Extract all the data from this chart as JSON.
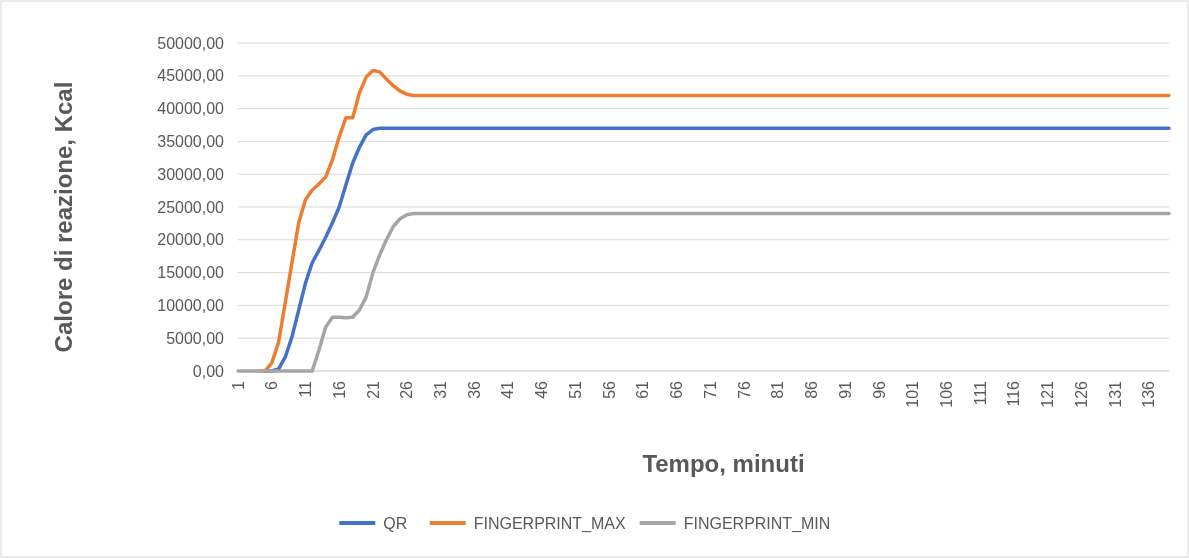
{
  "chart_data": {
    "type": "line",
    "xlabel": "Tempo, minuti",
    "ylabel": "Calore di reazione, Kcal",
    "categories": [
      "1",
      null,
      null,
      null,
      null,
      "6",
      null,
      null,
      null,
      null,
      "11",
      null,
      null,
      null,
      null,
      "16",
      null,
      null,
      null,
      null,
      "21",
      null,
      null,
      null,
      null,
      "26",
      null,
      null,
      null,
      null,
      "31",
      null,
      null,
      null,
      null,
      "36",
      null,
      null,
      null,
      null,
      "41",
      null,
      null,
      null,
      null,
      "46",
      null,
      null,
      null,
      null,
      "51",
      null,
      null,
      null,
      null,
      "56",
      null,
      null,
      null,
      null,
      "61",
      null,
      null,
      null,
      null,
      "66",
      null,
      null,
      null,
      null,
      "71",
      null,
      null,
      null,
      null,
      "76",
      null,
      null,
      null,
      null,
      "81",
      null,
      null,
      null,
      null,
      "86",
      null,
      null,
      null,
      null,
      "91",
      null,
      null,
      null,
      null,
      "96",
      null,
      null,
      null,
      null,
      "101",
      null,
      null,
      null,
      null,
      "106",
      null,
      null,
      null,
      null,
      "111",
      null,
      null,
      null,
      null,
      "116",
      null,
      null,
      null,
      null,
      "121",
      null,
      null,
      null,
      null,
      "126",
      null,
      null,
      null,
      null,
      "131",
      null,
      null,
      null,
      null,
      "136",
      null,
      null,
      null
    ],
    "series": [
      {
        "name": "QR",
        "color": "#4472c4",
        "values": [
          null,
          null,
          null,
          null,
          0,
          0,
          300,
          2100,
          5200,
          9300,
          13400,
          16500,
          18400,
          20400,
          22600,
          25000,
          28400,
          31700,
          34100,
          36000,
          36800,
          37000,
          37000,
          37000,
          37000,
          37000,
          37000,
          37000,
          37000,
          37000,
          37000,
          37000,
          37000,
          37000,
          37000,
          37000,
          37000,
          37000,
          37000,
          37000,
          37000,
          37000,
          37000,
          37000,
          37000,
          37000,
          37000,
          37000,
          37000,
          37000,
          37000,
          37000,
          37000,
          37000,
          37000,
          37000,
          37000,
          37000,
          37000,
          37000,
          37000,
          37000,
          37000,
          37000,
          37000,
          37000,
          37000,
          37000,
          37000,
          37000,
          37000,
          37000,
          37000,
          37000,
          37000,
          37000,
          37000,
          37000,
          37000,
          37000,
          37000,
          37000,
          37000,
          37000,
          37000,
          37000,
          37000,
          37000,
          37000,
          37000,
          37000,
          37000,
          37000,
          37000,
          37000,
          37000,
          37000,
          37000,
          37000,
          37000,
          37000,
          37000,
          37000,
          37000,
          37000,
          37000,
          37000,
          37000,
          37000,
          37000,
          37000,
          37000,
          37000,
          37000,
          37000,
          37000,
          37000,
          37000,
          37000,
          37000,
          37000,
          37000,
          37000,
          37000,
          37000,
          37000,
          37000,
          37000,
          37000,
          37000,
          37000,
          37000,
          37000,
          37000,
          37000,
          37000,
          37000,
          37000,
          37000
        ]
      },
      {
        "name": "FINGERPRINT_MAX",
        "color": "#ed7d31",
        "values": [
          null,
          null,
          null,
          0,
          0,
          1200,
          4300,
          10400,
          16500,
          22600,
          26100,
          27600,
          28500,
          29600,
          32200,
          35700,
          38600,
          38600,
          42400,
          44800,
          45800,
          45600,
          44500,
          43500,
          42700,
          42200,
          42000,
          42000,
          42000,
          42000,
          42000,
          42000,
          42000,
          42000,
          42000,
          42000,
          42000,
          42000,
          42000,
          42000,
          42000,
          42000,
          42000,
          42000,
          42000,
          42000,
          42000,
          42000,
          42000,
          42000,
          42000,
          42000,
          42000,
          42000,
          42000,
          42000,
          42000,
          42000,
          42000,
          42000,
          42000,
          42000,
          42000,
          42000,
          42000,
          42000,
          42000,
          42000,
          42000,
          42000,
          42000,
          42000,
          42000,
          42000,
          42000,
          42000,
          42000,
          42000,
          42000,
          42000,
          42000,
          42000,
          42000,
          42000,
          42000,
          42000,
          42000,
          42000,
          42000,
          42000,
          42000,
          42000,
          42000,
          42000,
          42000,
          42000,
          42000,
          42000,
          42000,
          42000,
          42000,
          42000,
          42000,
          42000,
          42000,
          42000,
          42000,
          42000,
          42000,
          42000,
          42000,
          42000,
          42000,
          42000,
          42000,
          42000,
          42000,
          42000,
          42000,
          42000,
          42000,
          42000,
          42000,
          42000,
          42000,
          42000,
          42000,
          42000,
          42000,
          42000,
          42000,
          42000,
          42000,
          42000,
          42000,
          42000,
          42000,
          42000,
          42000
        ]
      },
      {
        "name": "FINGERPRINT_MIN",
        "color": "#a5a5a5",
        "values": [
          0,
          0,
          0,
          0,
          0,
          0,
          0,
          0,
          0,
          0,
          0,
          0,
          3200,
          6700,
          8200,
          8200,
          8100,
          8200,
          9300,
          11300,
          15000,
          17700,
          20000,
          22000,
          23200,
          23800,
          24000,
          24000,
          24000,
          24000,
          24000,
          24000,
          24000,
          24000,
          24000,
          24000,
          24000,
          24000,
          24000,
          24000,
          24000,
          24000,
          24000,
          24000,
          24000,
          24000,
          24000,
          24000,
          24000,
          24000,
          24000,
          24000,
          24000,
          24000,
          24000,
          24000,
          24000,
          24000,
          24000,
          24000,
          24000,
          24000,
          24000,
          24000,
          24000,
          24000,
          24000,
          24000,
          24000,
          24000,
          24000,
          24000,
          24000,
          24000,
          24000,
          24000,
          24000,
          24000,
          24000,
          24000,
          24000,
          24000,
          24000,
          24000,
          24000,
          24000,
          24000,
          24000,
          24000,
          24000,
          24000,
          24000,
          24000,
          24000,
          24000,
          24000,
          24000,
          24000,
          24000,
          24000,
          24000,
          24000,
          24000,
          24000,
          24000,
          24000,
          24000,
          24000,
          24000,
          24000,
          24000,
          24000,
          24000,
          24000,
          24000,
          24000,
          24000,
          24000,
          24000,
          24000,
          24000,
          24000,
          24000,
          24000,
          24000,
          24000,
          24000,
          24000,
          24000,
          24000,
          24000,
          24000,
          24000,
          24000,
          24000,
          24000,
          24000,
          24000,
          24000
        ]
      }
    ],
    "ylim": [
      0,
      50000
    ],
    "yticks": [
      {
        "value": 0,
        "label": "0,00"
      },
      {
        "value": 5000,
        "label": "5000,00"
      },
      {
        "value": 10000,
        "label": "10000,00"
      },
      {
        "value": 15000,
        "label": "15000,00"
      },
      {
        "value": 20000,
        "label": "20000,00"
      },
      {
        "value": 25000,
        "label": "25000,00"
      },
      {
        "value": 30000,
        "label": "30000,00"
      },
      {
        "value": 35000,
        "label": "35000,00"
      },
      {
        "value": 40000,
        "label": "40000,00"
      },
      {
        "value": 45000,
        "label": "45000,00"
      },
      {
        "value": 50000,
        "label": "50000,00"
      }
    ],
    "grid": "y",
    "legend": "bottom",
    "marker": "none",
    "line_style": "solid"
  }
}
